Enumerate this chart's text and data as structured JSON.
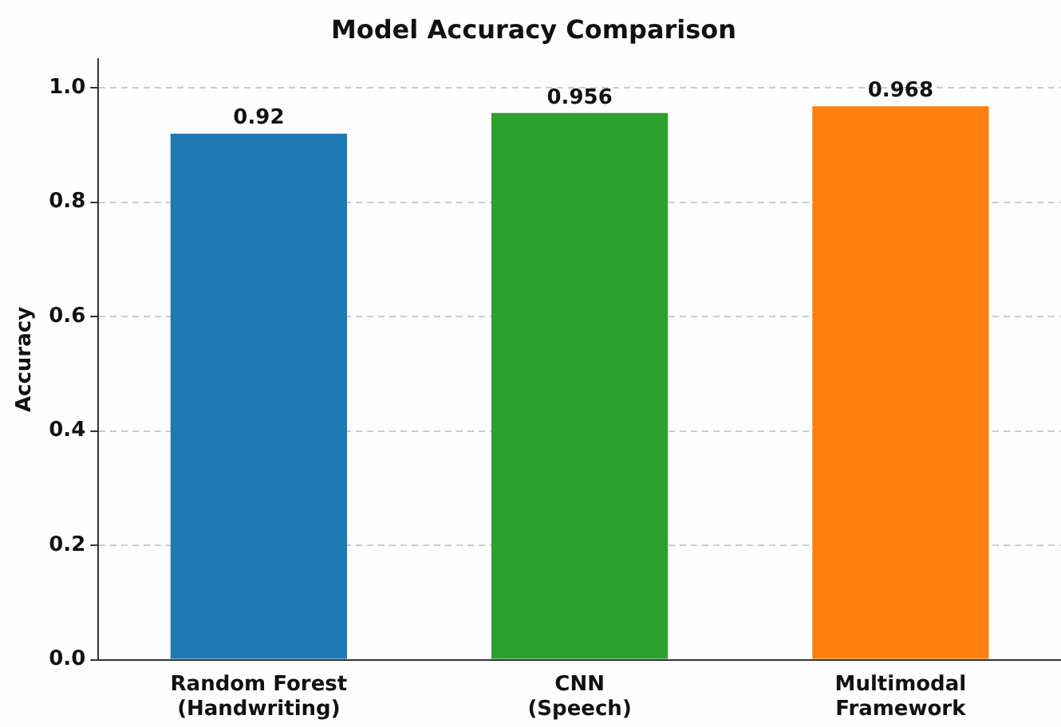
{
  "chart_data": {
    "type": "bar",
    "title": "Model Accuracy Comparison",
    "ylabel": "Accuracy",
    "categories": [
      "Random Forest\n(Handwriting)",
      "CNN\n(Speech)",
      "Multimodal\nFramework"
    ],
    "values": [
      0.92,
      0.956,
      0.968
    ],
    "colors": [
      "#1f77b4",
      "#2ca02c",
      "#ff7f0e"
    ],
    "ylim": [
      0,
      1.05
    ],
    "yticks": [
      {
        "value": 0,
        "label": "0.0"
      },
      {
        "value": 0.2,
        "label": "0.2"
      },
      {
        "value": 0.4,
        "label": "0.4"
      },
      {
        "value": 0.6,
        "label": "0.6"
      },
      {
        "value": 0.8,
        "label": "0.8"
      },
      {
        "value": 1,
        "label": "1.0"
      }
    ],
    "grid": "y",
    "data_labels": true,
    "legend": false
  }
}
